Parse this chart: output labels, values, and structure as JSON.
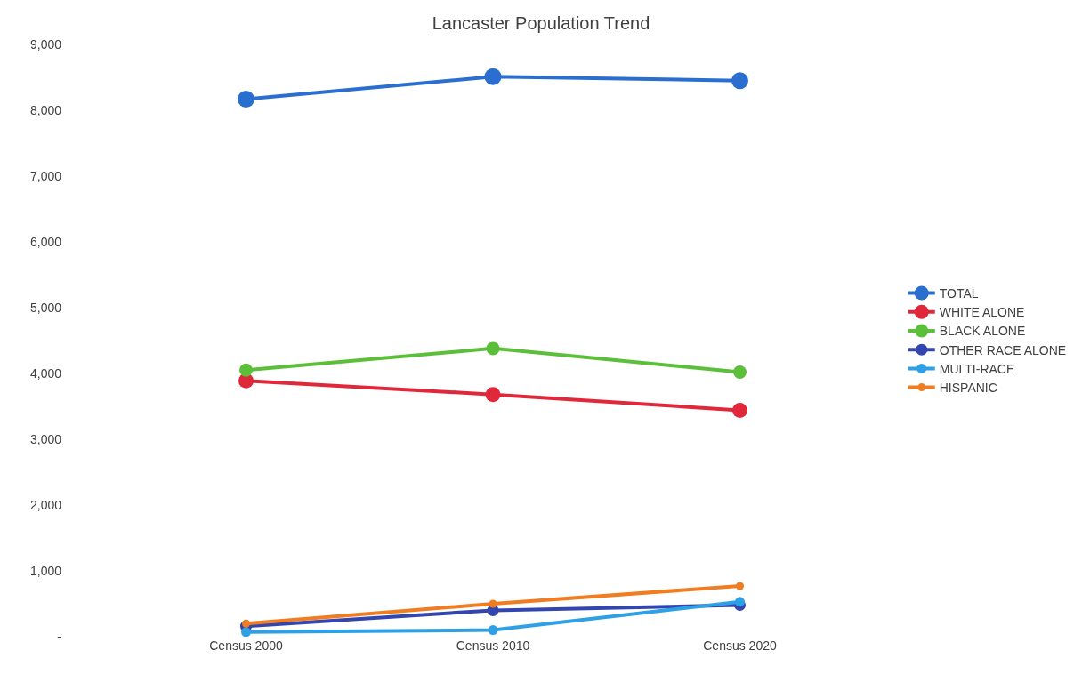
{
  "chart_data": {
    "type": "line",
    "title": "Lancaster Population Trend",
    "categories": [
      "Census 2000",
      "Census 2010",
      "Census 2020"
    ],
    "series": [
      {
        "name": "TOTAL",
        "color": "#2a6fd0",
        "values": [
          8170,
          8510,
          8450
        ]
      },
      {
        "name": "WHITE ALONE",
        "color": "#e0283a",
        "values": [
          3890,
          3680,
          3440
        ]
      },
      {
        "name": "BLACK ALONE",
        "color": "#5cbf3a",
        "values": [
          4050,
          4380,
          4020
        ]
      },
      {
        "name": "OTHER RACE ALONE",
        "color": "#3346b0",
        "values": [
          160,
          400,
          480
        ]
      },
      {
        "name": "MULTI-RACE",
        "color": "#2ea0e6",
        "values": [
          70,
          100,
          530
        ]
      },
      {
        "name": "HISPANIC",
        "color": "#f07d22",
        "values": [
          200,
          500,
          770
        ]
      }
    ],
    "ylim": [
      0,
      9000
    ],
    "yticks": [
      {
        "value": 0,
        "label": "-"
      },
      {
        "value": 1000,
        "label": "1,000"
      },
      {
        "value": 2000,
        "label": "2,000"
      },
      {
        "value": 3000,
        "label": "3,000"
      },
      {
        "value": 4000,
        "label": "4,000"
      },
      {
        "value": 5000,
        "label": "5,000"
      },
      {
        "value": 6000,
        "label": "6,000"
      },
      {
        "value": 7000,
        "label": "7,000"
      },
      {
        "value": 8000,
        "label": "8,000"
      },
      {
        "value": 9000,
        "label": "9,000"
      }
    ],
    "legend": "right",
    "marker": "circle",
    "line_style": "solid"
  }
}
